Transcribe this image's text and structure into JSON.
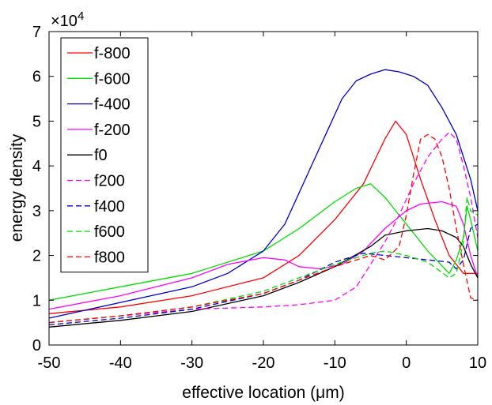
{
  "chart_data": {
    "type": "line",
    "title": "",
    "xlabel": "effective location (μm)",
    "ylabel": "energy density",
    "exponent_label": "×10",
    "exponent_power": "4",
    "xlim": [
      -50,
      10
    ],
    "ylim": [
      0,
      7
    ],
    "xticks": [
      "-50",
      "-40",
      "-30",
      "-20",
      "-10",
      "0",
      "10"
    ],
    "yticks": [
      "0",
      "1",
      "2",
      "3",
      "4",
      "5",
      "6",
      "7"
    ],
    "grid": false,
    "legend_position": "top-left",
    "series": [
      {
        "name": "f-800",
        "color": "#ff0000",
        "dash": false,
        "x": [
          -50,
          -40,
          -30,
          -20,
          -15,
          -10,
          -6,
          -3,
          -1.5,
          0,
          2,
          4,
          6,
          8,
          10
        ],
        "y": [
          0.7,
          0.85,
          1.1,
          1.5,
          2.0,
          2.8,
          3.6,
          4.6,
          5.0,
          4.7,
          3.7,
          2.8,
          2.0,
          1.6,
          1.6
        ]
      },
      {
        "name": "f-600",
        "color": "#00dd00",
        "dash": false,
        "x": [
          -50,
          -40,
          -30,
          -20,
          -15,
          -10,
          -7,
          -5,
          -3,
          0,
          3,
          6,
          7,
          8,
          8.5,
          9,
          10
        ],
        "y": [
          1.0,
          1.3,
          1.6,
          2.1,
          2.6,
          3.2,
          3.5,
          3.6,
          3.3,
          2.7,
          2.1,
          1.6,
          1.9,
          2.4,
          3.1,
          2.8,
          2.1
        ]
      },
      {
        "name": "f-400",
        "color": "#0000cc",
        "dash": false,
        "x": [
          -50,
          -40,
          -30,
          -25,
          -20,
          -17,
          -15,
          -13,
          -11,
          -9,
          -7,
          -5,
          -3,
          -1,
          1,
          3,
          5,
          7,
          8,
          9,
          10
        ],
        "y": [
          0.6,
          0.95,
          1.3,
          1.6,
          2.1,
          2.7,
          3.4,
          4.1,
          4.8,
          5.5,
          5.9,
          6.05,
          6.15,
          6.1,
          6.0,
          5.8,
          5.3,
          4.7,
          4.2,
          3.7,
          3.0
        ]
      },
      {
        "name": "f-200",
        "color": "#ff00ff",
        "dash": false,
        "x": [
          -50,
          -40,
          -30,
          -25,
          -20,
          -17,
          -15,
          -12,
          -9,
          -6,
          -3,
          0,
          2,
          5,
          7,
          8,
          9,
          10
        ],
        "y": [
          0.8,
          1.1,
          1.5,
          1.8,
          1.95,
          1.9,
          1.75,
          1.7,
          1.8,
          2.1,
          2.6,
          3.0,
          3.15,
          3.2,
          3.1,
          2.7,
          2.0,
          1.5
        ]
      },
      {
        "name": "f0",
        "color": "#000000",
        "dash": false,
        "x": [
          -50,
          -40,
          -30,
          -20,
          -15,
          -10,
          -5,
          -3,
          0,
          3,
          5,
          7,
          8,
          9,
          10
        ],
        "y": [
          0.4,
          0.55,
          0.75,
          1.1,
          1.4,
          1.75,
          2.2,
          2.45,
          2.55,
          2.6,
          2.55,
          2.4,
          2.2,
          1.8,
          1.5
        ]
      },
      {
        "name": "f200",
        "color": "#ff00ff",
        "dash": true,
        "x": [
          -50,
          -40,
          -30,
          -20,
          -15,
          -10,
          -7,
          -5,
          -3,
          -1,
          1,
          3,
          5,
          6,
          7,
          8,
          9,
          10
        ],
        "y": [
          0.5,
          0.65,
          0.8,
          0.85,
          0.9,
          1.0,
          1.3,
          1.8,
          2.3,
          2.9,
          3.6,
          4.2,
          4.6,
          4.75,
          4.6,
          4.0,
          3.3,
          2.4
        ]
      },
      {
        "name": "f400",
        "color": "#0000cc",
        "dash": true,
        "x": [
          -50,
          -40,
          -30,
          -20,
          -15,
          -10,
          -6,
          -3,
          0,
          3,
          6,
          7,
          8,
          9,
          10
        ],
        "y": [
          0.45,
          0.6,
          0.8,
          1.15,
          1.45,
          1.85,
          2.05,
          2.0,
          1.95,
          1.9,
          1.85,
          1.7,
          1.9,
          2.6,
          2.7
        ]
      },
      {
        "name": "f600",
        "color": "#00dd00",
        "dash": true,
        "x": [
          -50,
          -40,
          -30,
          -20,
          -15,
          -10,
          -5,
          -3,
          0,
          3,
          6,
          7,
          8,
          8.5,
          9,
          10
        ],
        "y": [
          0.5,
          0.65,
          0.85,
          1.2,
          1.5,
          1.8,
          2.05,
          2.1,
          2.0,
          1.85,
          1.5,
          1.6,
          2.3,
          3.3,
          3.0,
          2.9
        ]
      },
      {
        "name": "f800",
        "color": "#ff0000",
        "dash": true,
        "x": [
          -50,
          -40,
          -30,
          -20,
          -15,
          -10,
          -5,
          -3,
          -1,
          0,
          1,
          2,
          3,
          4,
          5,
          6,
          7,
          8,
          9,
          10
        ],
        "y": [
          0.5,
          0.65,
          0.85,
          1.15,
          1.45,
          1.75,
          2.0,
          1.9,
          2.2,
          2.9,
          3.8,
          4.6,
          4.7,
          4.6,
          4.2,
          3.5,
          2.6,
          1.8,
          1.05,
          1.0
        ]
      }
    ]
  }
}
